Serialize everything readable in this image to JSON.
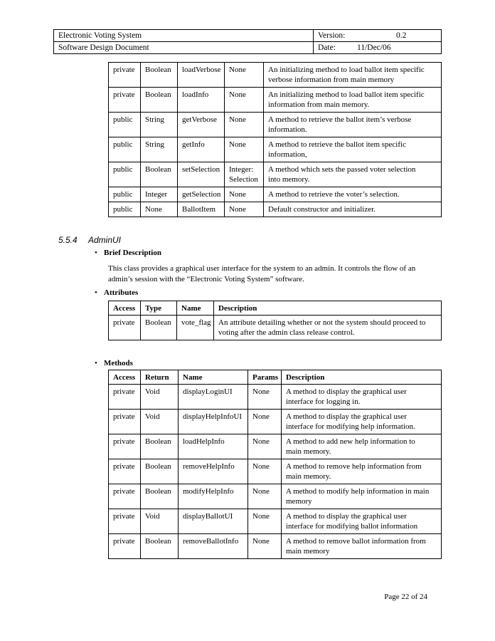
{
  "header": {
    "row1_title": "Electronic Voting System",
    "row2_title": "Software Design Document",
    "version_label": "Version:",
    "version_value": "0.2",
    "date_label": "Date:",
    "date_value": "11/Dec/06"
  },
  "section": {
    "number": "5.5.4",
    "title": "AdminUI"
  },
  "content": {
    "bullet_glyph": "•",
    "brief_description_label": "Brief Description",
    "brief_description_text": "This class provides a graphical user interface for the system to an admin.  It controls the flow of an\nadmin’s session with the “Electronic Voting System” software.",
    "attributes_label": "Attributes",
    "methods_label": "Methods"
  },
  "tables": {
    "ballot_item_methods_cont": {
      "columns": [],
      "rows": [
        [
          "private",
          "Boolean",
          "loadVerbose",
          "None",
          "An initializing method to load ballot item specific\nverbose information from main memory"
        ],
        [
          "private",
          "Boolean",
          "loadInfo",
          "None",
          "An initializing method to load ballot item specific\ninformation from main memory."
        ],
        [
          "public",
          "String",
          "getVerbose",
          "None",
          "A method to retrieve the ballot item’s verbose\ninformation."
        ],
        [
          "public",
          "String",
          "getInfo",
          "None",
          "A method to retrieve the ballot item specific\ninformation,"
        ],
        [
          "public",
          "Boolean",
          "setSelection",
          "Integer:\nSelection",
          "A method which sets the passed voter selection\ninto memory."
        ],
        [
          "public",
          "Integer",
          "getSelection",
          "None",
          "A method to retrieve the voter’s selection."
        ],
        [
          "public",
          "None",
          "BallotItem",
          "None",
          "Default constructor and initializer."
        ]
      ]
    },
    "admin_attributes": {
      "columns": [
        "Access",
        "Type",
        "Name",
        "Description"
      ],
      "rows": [
        [
          "private",
          "Boolean",
          "vote_flag",
          "An attribute detailing whether or not the system should proceed to\nvoting after the admin class release control."
        ]
      ]
    },
    "admin_methods": {
      "columns": [
        "Access",
        "Return",
        "Name",
        "Params",
        "Description"
      ],
      "rows": [
        [
          "private",
          "Void",
          "displayLoginUI",
          "None",
          "A method to display the graphical user\ninterface for logging in."
        ],
        [
          "private",
          "Void",
          "displayHelpInfoUI",
          "None",
          "A method to display the graphical user\ninterface for modifying help information."
        ],
        [
          "private",
          "Boolean",
          "loadHelpInfo",
          "None",
          "A method to add new help information to\nmain memory."
        ],
        [
          "private",
          "Boolean",
          "removeHelpInfo",
          "None",
          "A method to remove help information from\nmain memory."
        ],
        [
          "private",
          "Boolean",
          "modifyHelpInfo",
          "None",
          "A method to modify help information in main\nmemory"
        ],
        [
          "private",
          "Void",
          "displayBallotUI",
          "None",
          "A method to display the graphical user\ninterface for modifying ballot information"
        ],
        [
          "private",
          "Boolean",
          "removeBallotInfo",
          "None",
          "A method to remove ballot information from\nmain memory"
        ]
      ]
    }
  },
  "footer": {
    "page_text": "Page 22 of 24"
  }
}
